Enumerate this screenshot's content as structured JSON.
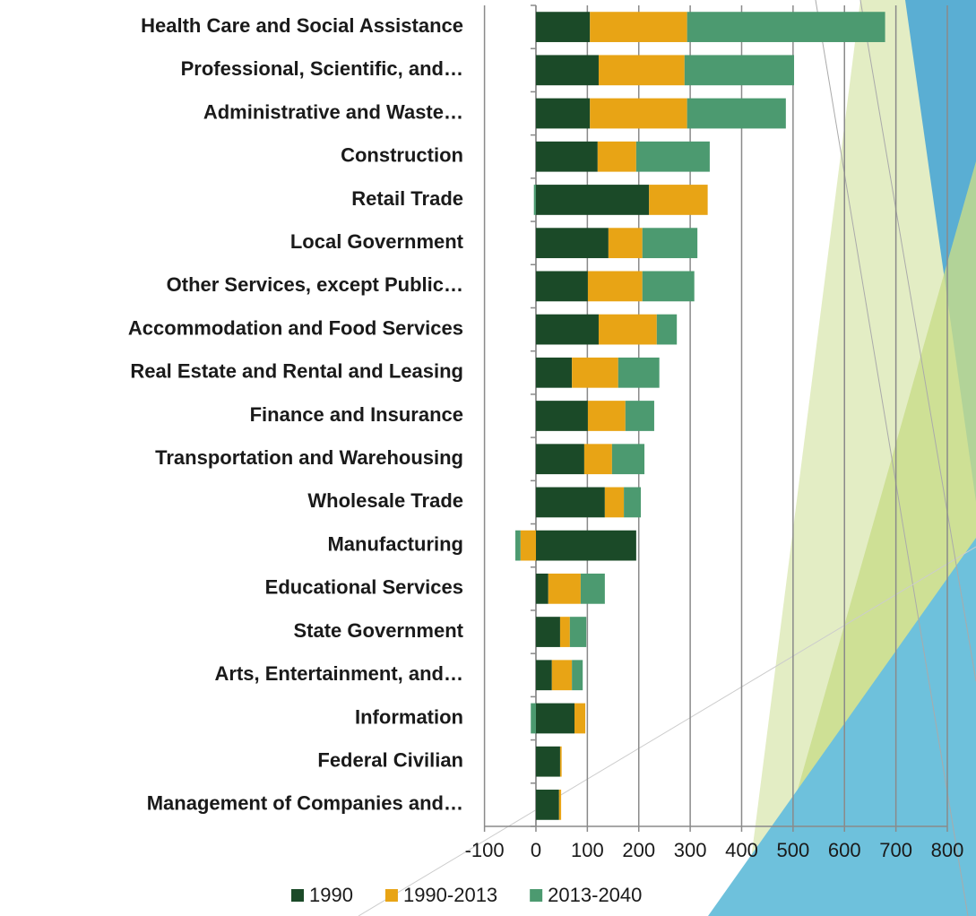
{
  "chart_data": {
    "type": "stacked-bar-horizontal",
    "categories": [
      "Health Care and Social Assistance",
      "Professional, Scientific, and…",
      "Administrative and Waste…",
      "Construction",
      "Retail Trade",
      "Local Government",
      "Other Services, except Public…",
      "Accommodation and Food Services",
      "Real Estate and Rental and Leasing",
      "Finance and Insurance",
      "Transportation and Warehousing",
      "Wholesale Trade",
      "Manufacturing",
      "Educational Services",
      "State Government",
      "Arts, Entertainment, and…",
      "Information",
      "Federal Civilian",
      "Management of Companies and…"
    ],
    "series": [
      {
        "name": "1990",
        "color": "#1b4a28",
        "values": [
          105,
          122,
          105,
          120,
          220,
          141,
          101,
          122,
          70,
          101,
          94,
          134,
          195,
          24,
          47,
          31,
          75,
          47,
          45
        ]
      },
      {
        "name": "1990-2013",
        "color": "#e8a415",
        "values": [
          189,
          167,
          189,
          75,
          114,
          66,
          106,
          113,
          90,
          73,
          54,
          37,
          -30,
          63,
          19,
          39,
          21,
          3,
          4
        ]
      },
      {
        "name": "2013-2040",
        "color": "#4c9a70",
        "values": [
          385,
          213,
          192,
          143,
          -4,
          107,
          101,
          39,
          80,
          56,
          63,
          33,
          -10,
          47,
          32,
          21,
          -10,
          0,
          0
        ]
      }
    ],
    "xlim": [
      -100,
      800
    ],
    "xticks": [
      -100,
      0,
      100,
      200,
      300,
      400,
      500,
      600,
      700,
      800
    ],
    "grid": true
  }
}
